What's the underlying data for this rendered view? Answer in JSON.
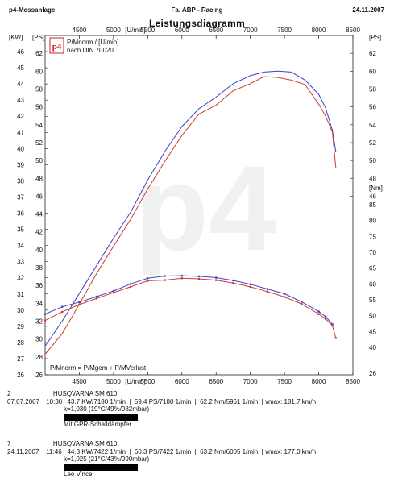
{
  "header": {
    "left": "p4-Messanlage",
    "center": "Fa. ABP - Racing",
    "right": "24.11.2007"
  },
  "title": "Leistungsdiagramm",
  "legend": {
    "line1": "P/Mnorm / [U/min]",
    "line2": "nach DIN 70020",
    "logo_text": "p4"
  },
  "formula": "P/Mnorm = P/Mgem + P/MVerlust",
  "chart_data": {
    "type": "line",
    "x_unit": "[U/min]",
    "xlim": [
      4000,
      8500
    ],
    "x_ticks": [
      4500,
      5000,
      5500,
      6000,
      6500,
      7000,
      7500,
      8000,
      8500
    ],
    "left_axis": {
      "unit": "[KW]",
      "ylim": [
        26,
        47
      ],
      "ticks": [
        26,
        27,
        28,
        29,
        30,
        31,
        32,
        33,
        34,
        35,
        36,
        37,
        38,
        39,
        40,
        41,
        42,
        43,
        44,
        45,
        46
      ]
    },
    "left_axis2": {
      "unit": "[PS]",
      "ylim": [
        26,
        64
      ],
      "ticks": [
        26,
        28,
        30,
        32,
        34,
        36,
        38,
        40,
        42,
        44,
        46,
        48,
        50,
        52,
        54,
        56,
        58,
        60,
        62
      ]
    },
    "right_axis": {
      "unit": "[PS]",
      "ylim": [
        26,
        64
      ],
      "ticks": [
        46,
        48,
        50,
        52,
        54,
        56,
        58,
        60,
        62
      ]
    },
    "right_axis_nm": {
      "unit": "[Nm]",
      "ticks": [
        40,
        45,
        50,
        55,
        60,
        65,
        70,
        75,
        80,
        85
      ]
    },
    "series": [
      {
        "kind": "power",
        "color": "#3b44c4",
        "x": [
          4000,
          4250,
          4500,
          4750,
          5000,
          5250,
          5500,
          5750,
          6000,
          6250,
          6500,
          6750,
          7000,
          7200,
          7400,
          7600,
          7800,
          8000,
          8100,
          8200,
          8250
        ],
        "y": [
          29.2,
          32.0,
          35.1,
          38.2,
          41.3,
          44.2,
          47.8,
          51.0,
          53.8,
          55.8,
          57.1,
          58.6,
          59.5,
          59.9,
          60.0,
          59.9,
          59.0,
          57.4,
          55.9,
          53.4,
          51.0
        ]
      },
      {
        "kind": "power",
        "color": "#d03c2e",
        "x": [
          4000,
          4250,
          4500,
          4750,
          5000,
          5250,
          5500,
          5750,
          6000,
          6250,
          6500,
          6750,
          7000,
          7200,
          7400,
          7600,
          7800,
          8000,
          8100,
          8200,
          8250
        ],
        "y": [
          28.3,
          30.6,
          33.9,
          37.3,
          40.4,
          43.4,
          46.8,
          49.9,
          52.8,
          55.2,
          56.2,
          57.8,
          58.6,
          59.4,
          59.3,
          59.0,
          58.5,
          56.3,
          55.0,
          53.2,
          49.2
        ]
      },
      {
        "kind": "torque",
        "color": "#3b44c4",
        "x": [
          4000,
          4250,
          4500,
          4750,
          5000,
          5250,
          5500,
          5750,
          6000,
          6250,
          6500,
          6750,
          7000,
          7250,
          7500,
          7750,
          8000,
          8100,
          8200
        ],
        "y": [
          50.5,
          52.8,
          54.3,
          56.0,
          57.8,
          60.0,
          61.8,
          62.5,
          62.6,
          62.4,
          62.0,
          61.1,
          59.9,
          58.4,
          56.9,
          54.4,
          51.3,
          49.7,
          47.3
        ]
      },
      {
        "kind": "torque",
        "color": "#d03c2e",
        "x": [
          4000,
          4250,
          4500,
          4750,
          5000,
          5250,
          5500,
          5750,
          6000,
          6250,
          6500,
          6750,
          7000,
          7250,
          7500,
          7750,
          8000,
          8100,
          8200,
          8250
        ],
        "y": [
          48.5,
          51.2,
          53.5,
          55.4,
          57.3,
          59.1,
          61.0,
          61.2,
          61.8,
          61.6,
          61.2,
          60.3,
          59.1,
          57.6,
          55.9,
          53.7,
          50.5,
          49.0,
          46.9,
          43.0
        ]
      }
    ]
  },
  "runs": [
    {
      "number": "2",
      "name": "HUSQVARNA SM 610",
      "date": "07.07.2007",
      "time": "10:30",
      "power_kw": "43.7 KW/7180 1/min",
      "power_ps": "59.4 PS/7180 1/min",
      "torque": "62.2 Nm/5961 1/min",
      "vmax": "vmax: 181.7 km/h",
      "conditions": "k=1,030 (19°C/49%/982mbar)",
      "note": "Mit GPR-Schalldämpfer",
      "swatch_color": "#000000"
    },
    {
      "number": "7",
      "name": "HUSQVARNA SM 610",
      "date": "24.11.2007",
      "time": "11:46",
      "power_kw": "44.3 KW/7422 1/min",
      "power_ps": "60.3 PS/7422 1/min",
      "torque": "63.2 Nm/6005 1/min",
      "vmax": "vmax: 177.0 km/h",
      "conditions": "k=1,025 (21°C/43%/990mbar)",
      "note": "Leo Vince",
      "swatch_color": "#000000"
    }
  ]
}
